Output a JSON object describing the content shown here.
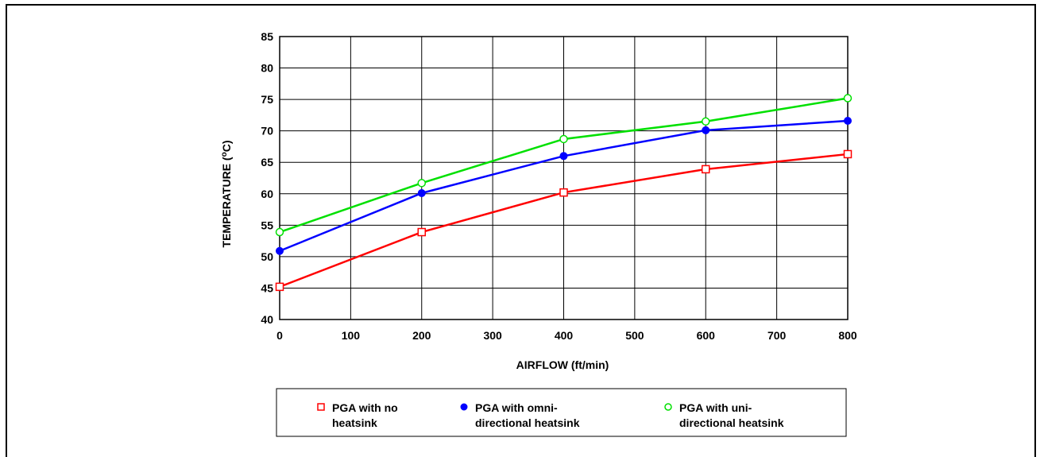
{
  "chart_data": {
    "type": "line",
    "title": "",
    "xlabel": "AIRFLOW (ft/min)",
    "ylabel_main": "TEMPERATURE (",
    "ylabel_sup": "o",
    "ylabel_end": "C)",
    "xlim": [
      0,
      800
    ],
    "ylim": [
      40,
      85
    ],
    "xticks": [
      0,
      100,
      200,
      300,
      400,
      500,
      600,
      700,
      800
    ],
    "yticks": [
      40,
      45,
      50,
      55,
      60,
      65,
      70,
      75,
      80,
      85
    ],
    "grid": true,
    "legend_position": "bottom",
    "series": [
      {
        "name_lines": [
          "PGA with no",
          "heatsink"
        ],
        "color": "#ff0000",
        "marker": "open-square",
        "x": [
          0,
          200,
          400,
          600,
          800
        ],
        "y": [
          45.2,
          53.9,
          60.2,
          63.9,
          66.3
        ]
      },
      {
        "name_lines": [
          "PGA with omni-",
          "directional heatsink"
        ],
        "color": "#0000ff",
        "marker": "filled-circle",
        "x": [
          0,
          200,
          400,
          600,
          800
        ],
        "y": [
          50.9,
          60.1,
          66.0,
          70.1,
          71.6
        ]
      },
      {
        "name_lines": [
          "PGA with uni-",
          "directional heatsink"
        ],
        "color": "#00e000",
        "marker": "open-circle",
        "x": [
          0,
          200,
          400,
          600,
          800
        ],
        "y": [
          53.9,
          61.7,
          68.7,
          71.5,
          75.2
        ]
      }
    ]
  }
}
